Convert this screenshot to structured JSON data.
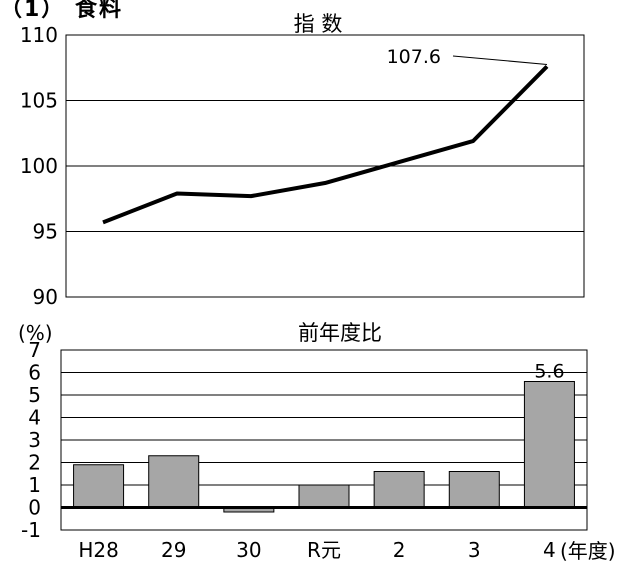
{
  "header": {
    "text": "（1） 食料"
  },
  "chart_data": [
    {
      "type": "line",
      "title": "指 数",
      "categories": [
        "H28",
        "29",
        "30",
        "R元",
        "2",
        "3",
        "4"
      ],
      "series": [
        {
          "values": [
            95.7,
            97.9,
            97.7,
            98.7,
            100.3,
            101.9,
            107.6
          ]
        }
      ],
      "ylim": [
        90,
        110
      ],
      "yticks": [
        90,
        95,
        100,
        105,
        110
      ],
      "grid": true,
      "annotation": {
        "text": "107.6",
        "category": "4",
        "value": 107.6
      }
    },
    {
      "type": "bar",
      "title": "前年度比",
      "ylabel": "(%)",
      "xlabel": "(年度)",
      "categories": [
        "H28",
        "29",
        "30",
        "R元",
        "2",
        "3",
        "4"
      ],
      "values": [
        1.9,
        2.3,
        -0.2,
        1.0,
        1.6,
        1.6,
        5.6
      ],
      "ylim": [
        -1,
        7
      ],
      "yticks": [
        -1,
        0,
        1,
        2,
        3,
        4,
        5,
        6,
        7
      ],
      "grid": true,
      "data_labels": [
        {
          "category": "4",
          "text": "5.6"
        }
      ],
      "colors": {
        "bar": "#a6a6a6"
      }
    }
  ]
}
